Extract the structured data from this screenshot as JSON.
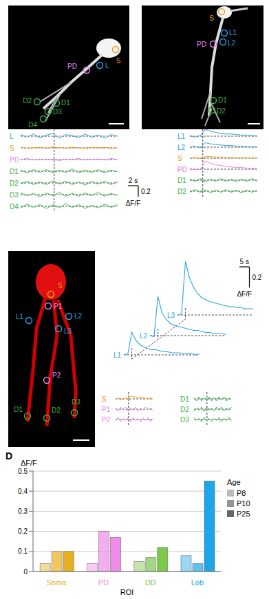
{
  "figure": {
    "groups": {
      "L": "#29a3e3",
      "S": "#f0a020",
      "PD": "#ee82ee",
      "D": "#39b54a"
    },
    "scale_bars": [
      {
        "time_s": 2,
        "time_label": "2 s",
        "amp": 0.2,
        "amp_label": "0.2",
        "unit": "ΔF/F"
      },
      {
        "time_s": 5,
        "time_label": "5 s",
        "amp": 0.2,
        "amp_label": "0.2",
        "unit": "ΔF/F"
      }
    ],
    "panels": [
      {
        "rois": [
          {
            "label": "L",
            "group": "L"
          },
          {
            "label": "S",
            "group": "S"
          },
          {
            "label": "PD",
            "group": "PD"
          },
          {
            "label": "D2",
            "group": "D"
          },
          {
            "label": "D1",
            "group": "D"
          },
          {
            "label": "D3",
            "group": "D"
          },
          {
            "label": "D4",
            "group": "D"
          }
        ],
        "recordings": [
          {
            "dt_s": 1.25,
            "stim_s": 6.5,
            "traces": [
              {
                "label": "L",
                "group": "L",
                "values": [
                  0.03,
                  -0.02,
                  0.04,
                  -0.03,
                  0.02,
                  0.05,
                  -0.04,
                  0.03,
                  0.01,
                  -0.03,
                  0.04,
                  -0.02,
                  0.02,
                  -0.04,
                  0.03,
                  0.0
                ]
              },
              {
                "label": "S",
                "group": "S",
                "values": [
                  0.01,
                  -0.01,
                  0.0,
                  0.01,
                  -0.01,
                  0.02,
                  0.0,
                  -0.01,
                  0.01,
                  0.0,
                  -0.01,
                  0.01,
                  0.0,
                  0.01,
                  -0.01,
                  0.0
                ]
              },
              {
                "label": "PD",
                "group": "PD",
                "values": [
                  0.0,
                  0.02,
                  -0.01,
                  0.01,
                  0.0,
                  0.01,
                  -0.02,
                  0.01,
                  0.0,
                  0.02,
                  -0.01,
                  0.0,
                  0.01,
                  -0.01,
                  0.02,
                  0.0
                ]
              },
              {
                "label": "D1",
                "group": "D",
                "values": [
                  0.02,
                  -0.03,
                  0.03,
                  -0.02,
                  0.03,
                  -0.03,
                  0.02,
                  -0.02,
                  0.04,
                  -0.03,
                  0.02,
                  -0.02,
                  0.03,
                  -0.03,
                  0.02,
                  -0.01
                ]
              },
              {
                "label": "D2",
                "group": "D",
                "values": [
                  -0.02,
                  0.03,
                  -0.03,
                  0.02,
                  -0.03,
                  0.04,
                  -0.02,
                  0.03,
                  -0.03,
                  0.02,
                  -0.04,
                  0.03,
                  -0.02,
                  0.03,
                  -0.03,
                  0.02
                ]
              },
              {
                "label": "D3",
                "group": "D",
                "values": [
                  0.03,
                  -0.02,
                  0.02,
                  -0.04,
                  0.03,
                  -0.02,
                  0.04,
                  -0.03,
                  0.02,
                  -0.03,
                  0.03,
                  -0.02,
                  0.04,
                  -0.03,
                  0.02,
                  -0.02
                ]
              },
              {
                "label": "D4",
                "group": "D",
                "values": [
                  -0.03,
                  0.04,
                  -0.02,
                  0.03,
                  -0.04,
                  0.03,
                  -0.03,
                  0.05,
                  -0.02,
                  0.03,
                  -0.04,
                  0.02,
                  -0.03,
                  0.04,
                  -0.02,
                  0.03
                ]
              }
            ]
          }
        ]
      },
      {
        "rois": [
          {
            "label": "S",
            "group": "S"
          },
          {
            "label": "L1",
            "group": "L"
          },
          {
            "label": "L2",
            "group": "L"
          },
          {
            "label": "PD",
            "group": "PD"
          },
          {
            "label": "D1",
            "group": "D"
          },
          {
            "label": "D2",
            "group": "D"
          }
        ],
        "recordings": [
          {
            "dt_s": 1.0,
            "stim_s": 2.5,
            "traces": [
              {
                "label": "L1",
                "group": "L",
                "values": [
                  0.01,
                  -0.02,
                  0.01,
                  0.12,
                  0.09,
                  0.07,
                  0.05,
                  0.04,
                  0.04,
                  0.03,
                  0.02,
                  0.02,
                  0.01,
                  0.01
                ]
              },
              {
                "label": "L2",
                "group": "L",
                "values": [
                  0.0,
                  0.02,
                  -0.01,
                  0.08,
                  0.06,
                  0.05,
                  0.04,
                  0.03,
                  0.03,
                  0.02,
                  0.02,
                  0.01,
                  0.01,
                  0.0
                ]
              },
              {
                "label": "S",
                "group": "S",
                "values": [
                  0.0,
                  0.01,
                  -0.01,
                  0.03,
                  0.03,
                  0.02,
                  0.02,
                  0.01,
                  0.01,
                  0.01,
                  0.0,
                  0.01,
                  0.0,
                  0.0
                ]
              },
              {
                "label": "PD",
                "group": "PD",
                "values": [
                  0.0,
                  -0.01,
                  0.0,
                  0.15,
                  0.11,
                  0.08,
                  0.07,
                  0.05,
                  0.04,
                  0.03,
                  0.03,
                  0.02,
                  0.02,
                  0.01
                ]
              },
              {
                "label": "D1",
                "group": "D",
                "values": [
                  0.02,
                  -0.02,
                  0.03,
                  -0.03,
                  0.02,
                  -0.02,
                  0.03,
                  -0.02,
                  0.02,
                  -0.03,
                  0.02,
                  -0.02,
                  0.03,
                  -0.02
                ]
              },
              {
                "label": "D2",
                "group": "D",
                "values": [
                  -0.02,
                  0.03,
                  -0.02,
                  0.02,
                  -0.03,
                  0.02,
                  -0.02,
                  0.03,
                  -0.02,
                  0.02,
                  -0.03,
                  0.02,
                  -0.02,
                  0.02
                ]
              }
            ]
          }
        ]
      },
      {
        "rois": [
          {
            "label": "S",
            "group": "S"
          },
          {
            "label": "P1",
            "group": "PD"
          },
          {
            "label": "L1",
            "group": "L"
          },
          {
            "label": "L2",
            "group": "L"
          },
          {
            "label": "L3",
            "group": "L"
          },
          {
            "label": "P2",
            "group": "PD"
          },
          {
            "label": "D1",
            "group": "D"
          },
          {
            "label": "D2",
            "group": "D"
          },
          {
            "label": "D3",
            "group": "D"
          }
        ],
        "recordings": [
          {
            "dt_s": 2.0,
            "stim_s": 4.0,
            "traces": [
              {
                "label": "L1",
                "group": "L",
                "values": [
                  0.0,
                  0.01,
                  0.22,
                  0.14,
                  0.1,
                  0.08,
                  0.06,
                  0.05,
                  0.05,
                  0.04,
                  0.03,
                  0.03,
                  0.02,
                  0.02,
                  0.02,
                  0.01,
                  0.01,
                  0.01,
                  0.0,
                  0.01
                ]
              },
              {
                "label": "L2",
                "group": "L",
                "values": [
                  0.0,
                  -0.01,
                  0.38,
                  0.22,
                  0.16,
                  0.12,
                  0.1,
                  0.09,
                  0.08,
                  0.07,
                  0.06,
                  0.05,
                  0.05,
                  0.04,
                  0.03,
                  0.03,
                  0.02,
                  0.02,
                  0.02,
                  0.01
                ]
              },
              {
                "label": "L3",
                "group": "L",
                "values": [
                  0.0,
                  0.01,
                  0.52,
                  0.36,
                  0.27,
                  0.21,
                  0.17,
                  0.15,
                  0.13,
                  0.12,
                  0.11,
                  0.1,
                  0.09,
                  0.08,
                  0.08,
                  0.07,
                  0.07,
                  0.06,
                  0.06,
                  0.06
                ]
              }
            ]
          },
          {
            "dt_s": 1.25,
            "stim_s": 6.5,
            "traces": [
              {
                "label": "S",
                "group": "S",
                "values": [
                  0.0,
                  0.01,
                  -0.01,
                  0.0,
                  0.01,
                  0.0,
                  0.03,
                  0.02,
                  0.02,
                  0.01,
                  0.02,
                  0.01,
                  0.01,
                  0.0,
                  0.01,
                  0.0
                ]
              },
              {
                "label": "P1",
                "group": "PD",
                "values": [
                  0.01,
                  -0.02,
                  0.02,
                  -0.01,
                  0.02,
                  -0.02,
                  0.01,
                  -0.01,
                  0.02,
                  -0.02,
                  0.01,
                  -0.01,
                  0.02,
                  -0.01,
                  0.01,
                  -0.02
                ]
              },
              {
                "label": "P2",
                "group": "PD",
                "values": [
                  -0.01,
                  0.02,
                  -0.02,
                  0.01,
                  -0.01,
                  0.02,
                  -0.02,
                  0.02,
                  -0.01,
                  0.01,
                  -0.02,
                  0.02,
                  -0.01,
                  0.02,
                  -0.02,
                  0.01
                ]
              }
            ]
          },
          {
            "dt_s": 1.25,
            "stim_s": 6.5,
            "traces": [
              {
                "label": "D1",
                "group": "D",
                "values": [
                  0.01,
                  -0.02,
                  0.02,
                  -0.02,
                  0.01,
                  -0.01,
                  0.02,
                  -0.02,
                  0.01,
                  -0.02,
                  0.02,
                  -0.01,
                  0.02,
                  -0.02,
                  0.01,
                  -0.01
                ]
              },
              {
                "label": "D2",
                "group": "D",
                "values": [
                  -0.02,
                  0.01,
                  -0.01,
                  0.02,
                  -0.02,
                  0.02,
                  -0.01,
                  0.01,
                  -0.02,
                  0.02,
                  -0.01,
                  0.02,
                  -0.02,
                  0.01,
                  -0.01,
                  0.02
                ]
              },
              {
                "label": "D3",
                "group": "D",
                "values": [
                  0.02,
                  -0.01,
                  0.01,
                  -0.02,
                  0.02,
                  -0.01,
                  0.01,
                  -0.02,
                  0.01,
                  -0.01,
                  0.02,
                  -0.02,
                  0.01,
                  -0.01,
                  0.02,
                  -0.01
                ]
              }
            ]
          }
        ]
      }
    ]
  },
  "chart_data": {
    "type": "bar",
    "title": "D",
    "x_label": "ROI",
    "y_label": "ΔF/F",
    "legend_title": "Age",
    "categories": [
      "Soma",
      "PD",
      "DD",
      "Lob"
    ],
    "colors": [
      "#e8b020",
      "#f08ce8",
      "#7cc84a",
      "#1ea6e8"
    ],
    "series": [
      {
        "name": "P8",
        "values": [
          0.04,
          0.04,
          0.05,
          0.08
        ]
      },
      {
        "name": "P10",
        "values": [
          0.1,
          0.2,
          0.07,
          0.04
        ]
      },
      {
        "name": "P25",
        "values": [
          0.1,
          0.17,
          0.12,
          0.45
        ]
      }
    ],
    "ylim": [
      0,
      0.5
    ],
    "yticks": [
      0,
      0.1,
      0.2,
      0.3,
      0.4,
      0.5
    ],
    "grid": true
  }
}
